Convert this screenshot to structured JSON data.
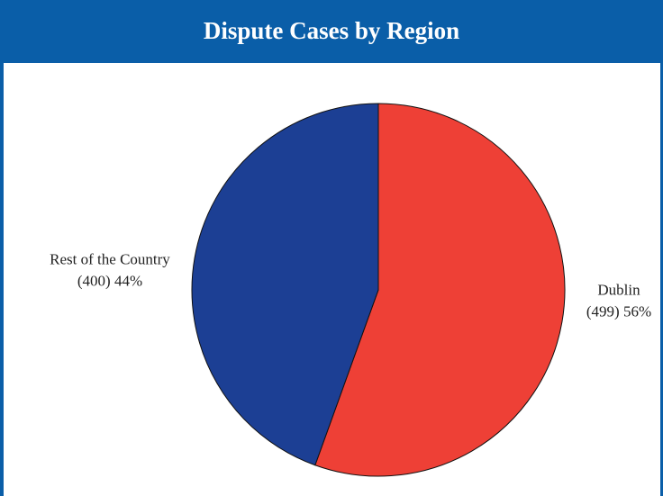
{
  "chart_data": {
    "type": "pie",
    "title": "Dispute Cases by Region",
    "categories": [
      "Dublin",
      "Rest of the Country"
    ],
    "values": [
      499,
      400
    ],
    "value_labels": [
      "(499) 56%",
      "(400) 44%"
    ],
    "colors": [
      "#ee4036",
      "#1c3f94"
    ]
  }
}
